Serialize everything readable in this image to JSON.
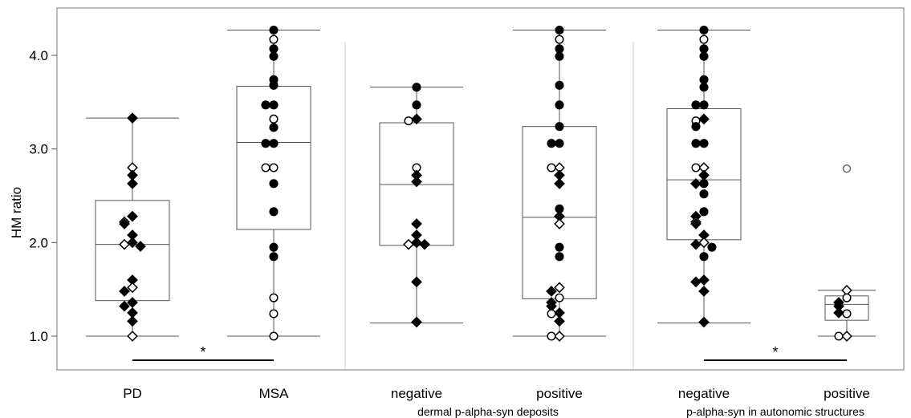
{
  "chart_data": {
    "type": "box",
    "ylabel": "HM ratio",
    "y_ticks": [
      "1.0",
      "2.0",
      "3.0",
      "4.0"
    ],
    "y_tick_values": [
      1.0,
      2.0,
      3.0,
      4.0
    ],
    "ylim": [
      0.5,
      4.5
    ],
    "grid": false,
    "groups": [
      {
        "title": "",
        "categories": [
          "PD",
          "MSA"
        ]
      },
      {
        "title": "dermal p-alpha-syn deposits",
        "categories": [
          "negative",
          "positive"
        ]
      },
      {
        "title": "p-alpha-syn in autonomic structures",
        "categories": [
          "negative",
          "positive"
        ]
      }
    ],
    "boxes": [
      {
        "category": "PD",
        "min": 1.0,
        "q1": 1.38,
        "median": 1.98,
        "q3": 2.45,
        "max": 3.33,
        "outliers": [],
        "points": [
          {
            "y": 3.33,
            "m": "df"
          },
          {
            "y": 2.8,
            "m": "do"
          },
          {
            "y": 2.72,
            "m": "df"
          },
          {
            "y": 2.63,
            "m": "df"
          },
          {
            "y": 2.28,
            "m": "df"
          },
          {
            "y": 2.22,
            "m": "do"
          },
          {
            "y": 2.2,
            "m": "df"
          },
          {
            "y": 2.08,
            "m": "df"
          },
          {
            "y": 2.0,
            "m": "df"
          },
          {
            "y": 1.98,
            "m": "do"
          },
          {
            "y": 1.96,
            "m": "df"
          },
          {
            "y": 1.6,
            "m": "df"
          },
          {
            "y": 1.52,
            "m": "do"
          },
          {
            "y": 1.48,
            "m": "df"
          },
          {
            "y": 1.36,
            "m": "df"
          },
          {
            "y": 1.32,
            "m": "df"
          },
          {
            "y": 1.25,
            "m": "df"
          },
          {
            "y": 1.16,
            "m": "df"
          },
          {
            "y": 1.0,
            "m": "do"
          }
        ]
      },
      {
        "category": "MSA",
        "min": 1.0,
        "q1": 2.14,
        "median": 3.07,
        "q3": 3.67,
        "max": 4.27,
        "outliers": [],
        "points": [
          {
            "y": 4.27,
            "m": "cf"
          },
          {
            "y": 4.17,
            "m": "co"
          },
          {
            "y": 4.07,
            "m": "cf"
          },
          {
            "y": 3.99,
            "m": "cf"
          },
          {
            "y": 3.74,
            "m": "cf"
          },
          {
            "y": 3.68,
            "m": "cf"
          },
          {
            "y": 3.47,
            "m": "cf"
          },
          {
            "y": 3.47,
            "m": "cf"
          },
          {
            "y": 3.32,
            "m": "co"
          },
          {
            "y": 3.23,
            "m": "cf"
          },
          {
            "y": 3.06,
            "m": "cf"
          },
          {
            "y": 3.06,
            "m": "cf"
          },
          {
            "y": 2.8,
            "m": "co"
          },
          {
            "y": 2.8,
            "m": "co"
          },
          {
            "y": 2.63,
            "m": "cf"
          },
          {
            "y": 2.33,
            "m": "cf"
          },
          {
            "y": 1.95,
            "m": "cf"
          },
          {
            "y": 1.85,
            "m": "cf"
          },
          {
            "y": 1.41,
            "m": "co"
          },
          {
            "y": 1.24,
            "m": "co"
          },
          {
            "y": 1.0,
            "m": "co"
          }
        ]
      },
      {
        "category": "negative",
        "min": 1.14,
        "q1": 1.97,
        "median": 2.62,
        "q3": 3.28,
        "max": 3.66,
        "outliers": [],
        "points": [
          {
            "y": 3.66,
            "m": "cf"
          },
          {
            "y": 3.47,
            "m": "cf"
          },
          {
            "y": 3.32,
            "m": "df"
          },
          {
            "y": 3.3,
            "m": "co"
          },
          {
            "y": 2.8,
            "m": "co"
          },
          {
            "y": 2.72,
            "m": "df"
          },
          {
            "y": 2.65,
            "m": "df"
          },
          {
            "y": 2.2,
            "m": "df"
          },
          {
            "y": 2.08,
            "m": "df"
          },
          {
            "y": 2.0,
            "m": "df"
          },
          {
            "y": 1.98,
            "m": "do"
          },
          {
            "y": 1.98,
            "m": "df"
          },
          {
            "y": 1.58,
            "m": "df"
          },
          {
            "y": 1.15,
            "m": "df"
          }
        ]
      },
      {
        "category": "positive",
        "min": 1.0,
        "q1": 1.4,
        "median": 2.27,
        "q3": 3.24,
        "max": 4.27,
        "outliers": [],
        "points": [
          {
            "y": 4.27,
            "m": "cf"
          },
          {
            "y": 4.17,
            "m": "co"
          },
          {
            "y": 4.07,
            "m": "cf"
          },
          {
            "y": 3.99,
            "m": "cf"
          },
          {
            "y": 3.68,
            "m": "cf"
          },
          {
            "y": 3.47,
            "m": "cf"
          },
          {
            "y": 3.24,
            "m": "cf"
          },
          {
            "y": 3.06,
            "m": "cf"
          },
          {
            "y": 3.06,
            "m": "cf"
          },
          {
            "y": 2.8,
            "m": "do"
          },
          {
            "y": 2.8,
            "m": "co"
          },
          {
            "y": 2.72,
            "m": "df"
          },
          {
            "y": 2.63,
            "m": "df"
          },
          {
            "y": 2.36,
            "m": "cf"
          },
          {
            "y": 2.28,
            "m": "df"
          },
          {
            "y": 2.2,
            "m": "do"
          },
          {
            "y": 1.95,
            "m": "cf"
          },
          {
            "y": 1.85,
            "m": "cf"
          },
          {
            "y": 1.52,
            "m": "do"
          },
          {
            "y": 1.48,
            "m": "df"
          },
          {
            "y": 1.41,
            "m": "co"
          },
          {
            "y": 1.36,
            "m": "df"
          },
          {
            "y": 1.32,
            "m": "df"
          },
          {
            "y": 1.25,
            "m": "df"
          },
          {
            "y": 1.24,
            "m": "co"
          },
          {
            "y": 1.16,
            "m": "df"
          },
          {
            "y": 1.0,
            "m": "do"
          },
          {
            "y": 1.0,
            "m": "co"
          }
        ]
      },
      {
        "category": "negative",
        "min": 1.14,
        "q1": 2.03,
        "median": 2.67,
        "q3": 3.43,
        "max": 4.27,
        "outliers": [],
        "points": [
          {
            "y": 4.27,
            "m": "cf"
          },
          {
            "y": 4.17,
            "m": "co"
          },
          {
            "y": 4.07,
            "m": "cf"
          },
          {
            "y": 3.99,
            "m": "cf"
          },
          {
            "y": 3.74,
            "m": "cf"
          },
          {
            "y": 3.66,
            "m": "cf"
          },
          {
            "y": 3.47,
            "m": "cf"
          },
          {
            "y": 3.47,
            "m": "cf"
          },
          {
            "y": 3.32,
            "m": "df"
          },
          {
            "y": 3.3,
            "m": "co"
          },
          {
            "y": 3.24,
            "m": "cf"
          },
          {
            "y": 3.06,
            "m": "cf"
          },
          {
            "y": 3.06,
            "m": "cf"
          },
          {
            "y": 2.8,
            "m": "do"
          },
          {
            "y": 2.8,
            "m": "co"
          },
          {
            "y": 2.72,
            "m": "df"
          },
          {
            "y": 2.63,
            "m": "cf"
          },
          {
            "y": 2.63,
            "m": "df"
          },
          {
            "y": 2.52,
            "m": "cf"
          },
          {
            "y": 2.33,
            "m": "cf"
          },
          {
            "y": 2.28,
            "m": "df"
          },
          {
            "y": 2.22,
            "m": "do"
          },
          {
            "y": 2.2,
            "m": "df"
          },
          {
            "y": 2.08,
            "m": "df"
          },
          {
            "y": 2.0,
            "m": "do"
          },
          {
            "y": 1.98,
            "m": "df"
          },
          {
            "y": 1.95,
            "m": "cf"
          },
          {
            "y": 1.85,
            "m": "cf"
          },
          {
            "y": 1.6,
            "m": "df"
          },
          {
            "y": 1.58,
            "m": "df"
          },
          {
            "y": 1.48,
            "m": "df"
          },
          {
            "y": 1.15,
            "m": "df"
          }
        ]
      },
      {
        "category": "positive",
        "min": 1.0,
        "q1": 1.17,
        "median": 1.34,
        "q3": 1.43,
        "max": 1.49,
        "outliers": [
          2.79
        ],
        "points": [
          {
            "y": 1.49,
            "m": "do"
          },
          {
            "y": 1.41,
            "m": "co"
          },
          {
            "y": 1.36,
            "m": "df"
          },
          {
            "y": 1.32,
            "m": "df"
          },
          {
            "y": 1.24,
            "m": "co"
          },
          {
            "y": 1.25,
            "m": "df"
          },
          {
            "y": 1.0,
            "m": "do"
          },
          {
            "y": 1.0,
            "m": "co"
          }
        ]
      }
    ],
    "significance": [
      {
        "between": [
          0,
          1
        ],
        "y": 0.73,
        "label": "*"
      },
      {
        "between": [
          4,
          5
        ],
        "y": 0.73,
        "label": "*"
      }
    ]
  }
}
